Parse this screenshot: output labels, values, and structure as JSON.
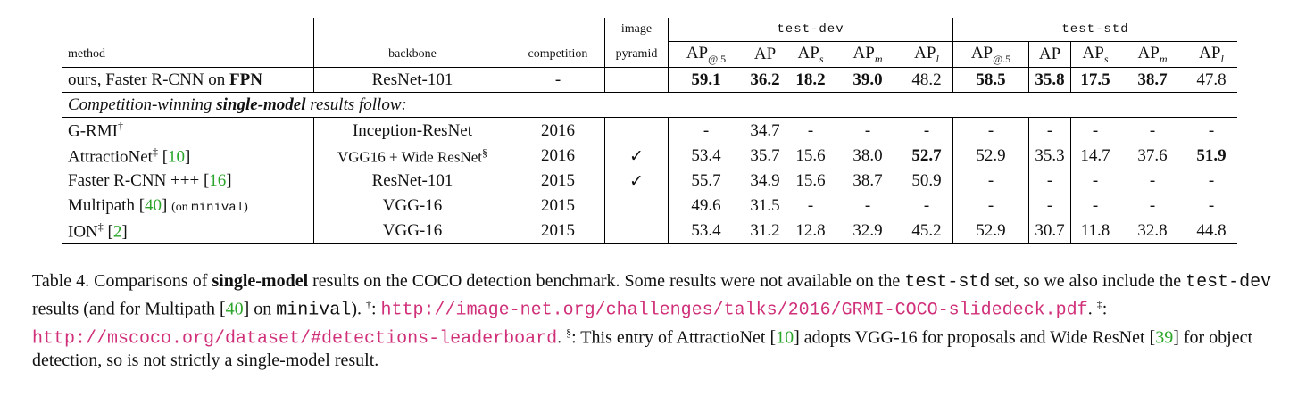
{
  "header": {
    "method": "method",
    "backbone": "backbone",
    "competition": "competition",
    "image": "image",
    "pyramid": "pyramid",
    "test_dev": "test-dev",
    "test_std": "test-std",
    "ap": "AP",
    "sub50": "@.5",
    "sub_s": "s",
    "sub_m": "m",
    "sub_l": "l"
  },
  "ours": {
    "method_prefix": "ours, Faster R-CNN on ",
    "method_bold": "FPN",
    "backbone": "ResNet-101",
    "competition": "-",
    "pyramid": "",
    "dev": [
      "59.1",
      "36.2",
      "18.2",
      "39.0",
      "48.2"
    ],
    "std": [
      "58.5",
      "35.8",
      "17.5",
      "38.7",
      "47.8"
    ]
  },
  "section": {
    "prefix": "Competition-winning ",
    "bold": "single-model",
    "suffix": " results follow:"
  },
  "rows": [
    {
      "name": "G-RMI",
      "mark": "†",
      "ref": "",
      "note": "",
      "note_mono": "",
      "note_end": "",
      "backbone": "Inception-ResNet",
      "backbone_mark": "",
      "competition": "2016",
      "pyramid": "",
      "dev": [
        "-",
        "34.7",
        "-",
        "-",
        "-"
      ],
      "std": [
        "-",
        "-",
        "-",
        "-",
        "-"
      ]
    },
    {
      "name": "AttractioNet",
      "mark": "‡",
      "ref": "10",
      "note": "",
      "note_mono": "",
      "note_end": "",
      "backbone": "VGG16 + Wide ResNet",
      "backbone_mark": "§",
      "competition": "2016",
      "pyramid": "✓",
      "dev": [
        "53.4",
        "35.7",
        "15.6",
        "38.0",
        "52.7"
      ],
      "std": [
        "52.9",
        "35.3",
        "14.7",
        "37.6",
        "51.9"
      ]
    },
    {
      "name": "Faster R-CNN +++",
      "mark": "",
      "ref": "16",
      "note": "",
      "note_mono": "",
      "note_end": "",
      "backbone": "ResNet-101",
      "backbone_mark": "",
      "competition": "2015",
      "pyramid": "✓",
      "dev": [
        "55.7",
        "34.9",
        "15.6",
        "38.7",
        "50.9"
      ],
      "std": [
        "-",
        "-",
        "-",
        "-",
        "-"
      ]
    },
    {
      "name": "Multipath",
      "mark": "",
      "ref": "40",
      "note": "(on ",
      "note_mono": "minival",
      "note_end": ")",
      "backbone": "VGG-16",
      "backbone_mark": "",
      "competition": "2015",
      "pyramid": "",
      "dev": [
        "49.6",
        "31.5",
        "-",
        "-",
        "-"
      ],
      "std": [
        "-",
        "-",
        "-",
        "-",
        "-"
      ]
    },
    {
      "name": "ION",
      "mark": "‡",
      "ref": "2",
      "note": "",
      "note_mono": "",
      "note_end": "",
      "backbone": "VGG-16",
      "backbone_mark": "",
      "competition": "2015",
      "pyramid": "",
      "dev": [
        "53.4",
        "31.2",
        "12.8",
        "32.9",
        "45.2"
      ],
      "std": [
        "52.9",
        "30.7",
        "11.8",
        "32.8",
        "44.8"
      ]
    }
  ],
  "caption": {
    "t1": "Table 4. Comparisons of ",
    "t1b": "single-model",
    "t2": " results on the COCO detection benchmark. Some results were not available on the ",
    "m1": "test-std",
    "t3": " set, so we also include the ",
    "m2": "test-dev",
    "t4": " results (and for Multipath [",
    "r1": "40",
    "t5": "] on ",
    "m3": "minival",
    "t6": "). ",
    "dag": "†",
    "t7": ": ",
    "url1": "http://image-net.org/challenges/talks/2016/GRMI-COCO-slidedeck.pdf",
    "t8": ". ",
    "ddag": "‡",
    "t9": ": ",
    "url2": "http://mscoco.org/dataset/#detections-leaderboard",
    "t10": ". ",
    "sect": "§",
    "t11": ": This entry of AttractioNet [",
    "r2": "10",
    "t12": "] adopts VGG-16 for proposals and Wide ResNet [",
    "r3": "39",
    "t13": "] for object detection, so is not strictly a single-model result."
  }
}
